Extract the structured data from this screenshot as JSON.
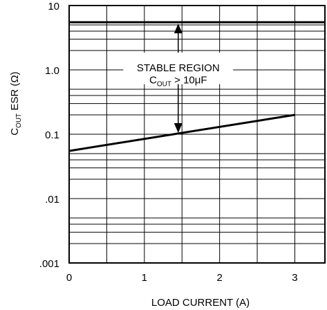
{
  "chart_data": {
    "type": "line",
    "title": "",
    "xlabel": "LOAD CURRENT (A)",
    "ylabel": {
      "main": "C",
      "sub": "OUT",
      "rest": " ESR (Ω)"
    },
    "xlim": [
      0,
      3.4
    ],
    "ylim": [
      0.001,
      10
    ],
    "yscale": "log",
    "grid": true,
    "x_tick_labels": [
      "0",
      "1",
      "2",
      "3"
    ],
    "x_tick_values": [
      0,
      1,
      2,
      3
    ],
    "y_tick_labels": [
      ".001",
      ".01",
      "0.1",
      "1.0",
      "10"
    ],
    "y_tick_values": [
      0.001,
      0.01,
      0.1,
      1,
      10
    ],
    "series": [
      {
        "x": [
          0,
          3
        ],
        "y": [
          0.055,
          0.2
        ]
      },
      {
        "x": [
          0,
          3.4
        ],
        "y": [
          5.5,
          5.5
        ]
      }
    ],
    "annotations": {
      "line1": "STABLE REGION",
      "line2_main": "C",
      "line2_sub": "OUT",
      "line2_rest": " > 10μF"
    }
  },
  "colors": {
    "line": "#000000",
    "grid": "#000000",
    "background": "#ffffff"
  }
}
